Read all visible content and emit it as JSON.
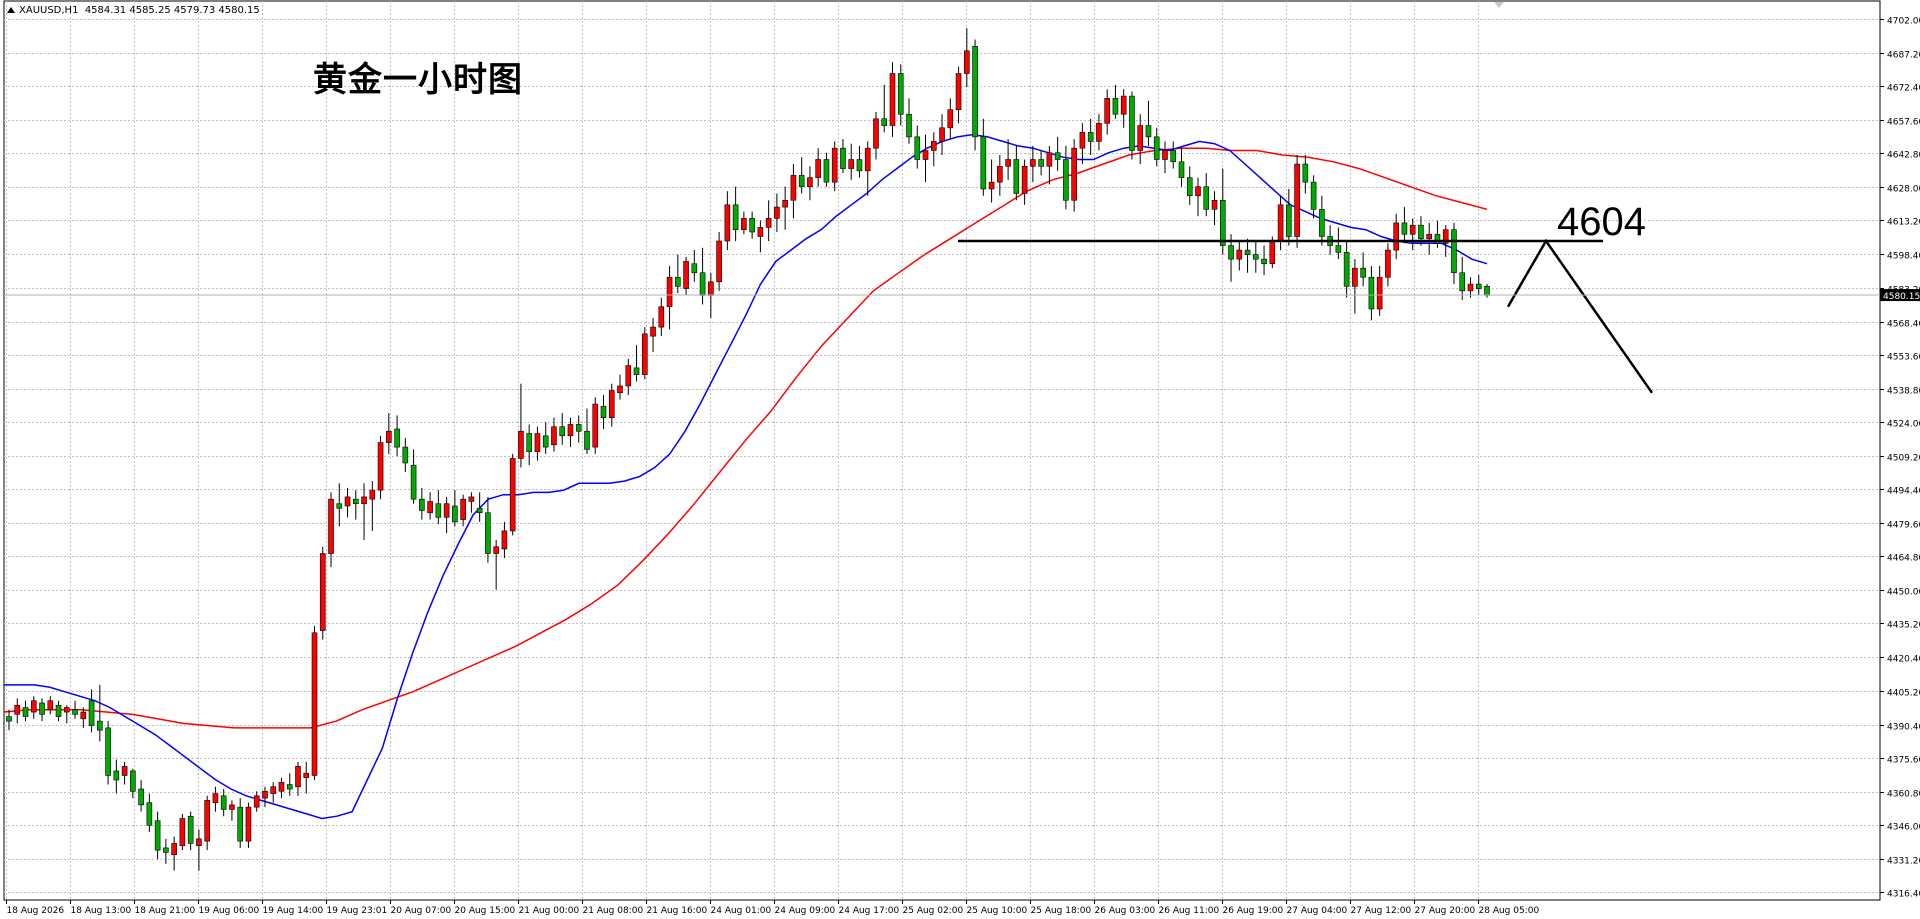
{
  "header": {
    "symbol": "XAUUSD,H1",
    "ohlc": "4584.31 4585.25 4579.73 4580.15"
  },
  "annotation": {
    "title": "黄金一小时图",
    "level_label": "4604"
  },
  "colors": {
    "bull_candle": "#ff0000",
    "bear_candle": "#00aa00",
    "ma_fast": "#0000ff",
    "ma_slow": "#ff0000",
    "grid": "#c0c0c0",
    "background": "#ffffff"
  },
  "chart_data": {
    "type": "candlestick",
    "y_range": [
      4313,
      4710
    ],
    "grid": true,
    "y_ticks": [
      "4702.00",
      "4687.20",
      "4672.40",
      "4657.60",
      "4642.80",
      "4628.00",
      "4613.20",
      "4598.40",
      "4583.20",
      "4568.40",
      "4553.60",
      "4538.80",
      "4524.00",
      "4509.20",
      "4494.40",
      "4479.60",
      "4464.80",
      "4450.00",
      "4435.20",
      "4420.40",
      "4405.20",
      "4390.40",
      "4375.60",
      "4360.80",
      "4346.00",
      "4331.20",
      "4316.40"
    ],
    "y_tick_values": [
      4702.0,
      4687.2,
      4672.4,
      4657.6,
      4642.8,
      4628.0,
      4613.2,
      4598.4,
      4583.2,
      4568.4,
      4553.6,
      4538.8,
      4524.0,
      4509.2,
      4494.4,
      4479.6,
      4464.8,
      4450.0,
      4435.2,
      4420.4,
      4405.2,
      4390.4,
      4375.6,
      4360.8,
      4346.0,
      4331.2,
      4316.4
    ],
    "x_ticks": [
      "18 Aug 2026",
      "18 Aug 13:00",
      "18 Aug 21:00",
      "19 Aug 06:00",
      "19 Aug 14:00",
      "19 Aug 23:01",
      "20 Aug 07:00",
      "20 Aug 15:00",
      "21 Aug 00:00",
      "21 Aug 08:00",
      "21 Aug 16:00",
      "24 Aug 01:00",
      "24 Aug 09:00",
      "24 Aug 17:00",
      "25 Aug 02:00",
      "25 Aug 10:00",
      "25 Aug 18:00",
      "26 Aug 03:00",
      "26 Aug 11:00",
      "26 Aug 19:00",
      "27 Aug 04:00",
      "27 Aug 12:00",
      "27 Aug 20:00",
      "28 Aug 05:00"
    ],
    "current_price": "4580.15",
    "current_price_value": 4580.15,
    "resistance_level": 4604,
    "projection": {
      "path_prices": [
        4575,
        4604,
        4537
      ]
    },
    "candles_ohlc": [
      [
        4394,
        4397,
        4388,
        4392
      ],
      [
        4395,
        4402,
        4391,
        4399
      ],
      [
        4398,
        4401,
        4392,
        4394
      ],
      [
        4396,
        4403,
        4393,
        4401
      ],
      [
        4400,
        4402,
        4392,
        4395
      ],
      [
        4397,
        4403,
        4395,
        4401
      ],
      [
        4399,
        4401,
        4392,
        4394
      ],
      [
        4396,
        4399,
        4391,
        4398
      ],
      [
        4397,
        4401,
        4393,
        4395
      ],
      [
        4393,
        4398,
        4389,
        4396
      ],
      [
        4401,
        4406,
        4387,
        4390
      ],
      [
        4392,
        4408,
        4383,
        4388
      ],
      [
        4389,
        4392,
        4364,
        4368
      ],
      [
        4370,
        4375,
        4360,
        4366
      ],
      [
        4368,
        4374,
        4364,
        4372
      ],
      [
        4370,
        4371,
        4358,
        4361
      ],
      [
        4362,
        4366,
        4352,
        4355
      ],
      [
        4356,
        4360,
        4343,
        4346
      ],
      [
        4348,
        4352,
        4331,
        4335
      ],
      [
        4336,
        4340,
        4329,
        4334
      ],
      [
        4333,
        4341,
        4326,
        4338
      ],
      [
        4337,
        4351,
        4335,
        4349
      ],
      [
        4350,
        4352,
        4335,
        4338
      ],
      [
        4337,
        4344,
        4326,
        4340
      ],
      [
        4339,
        4359,
        4335,
        4357
      ],
      [
        4356,
        4363,
        4352,
        4360
      ],
      [
        4359,
        4362,
        4350,
        4353
      ],
      [
        4353,
        4357,
        4348,
        4355
      ],
      [
        4354,
        4358,
        4336,
        4339
      ],
      [
        4339,
        4356,
        4336,
        4354
      ],
      [
        4354,
        4361,
        4352,
        4359
      ],
      [
        4358,
        4363,
        4354,
        4361
      ],
      [
        4360,
        4365,
        4356,
        4363
      ],
      [
        4361,
        4367,
        4358,
        4365
      ],
      [
        4364,
        4369,
        4359,
        4362
      ],
      [
        4363,
        4374,
        4359,
        4372
      ],
      [
        4367,
        4374,
        4360,
        4369
      ],
      [
        4368,
        4434,
        4366,
        4431
      ],
      [
        4432,
        4469,
        4428,
        4466
      ],
      [
        4466,
        4493,
        4460,
        4490
      ],
      [
        4488,
        4497,
        4478,
        4486
      ],
      [
        4487,
        4495,
        4482,
        4491
      ],
      [
        4490,
        4494,
        4481,
        4488
      ],
      [
        4488,
        4497,
        4472,
        4491
      ],
      [
        4490,
        4498,
        4476,
        4494
      ],
      [
        4494,
        4518,
        4490,
        4515
      ],
      [
        4515,
        4528,
        4510,
        4520
      ],
      [
        4521,
        4527,
        4509,
        4513
      ],
      [
        4513,
        4517,
        4502,
        4506
      ],
      [
        4505,
        4512,
        4488,
        4490
      ],
      [
        4490,
        4495,
        4481,
        4485
      ],
      [
        4484,
        4493,
        4481,
        4489
      ],
      [
        4488,
        4494,
        4479,
        4482
      ],
      [
        4482,
        4491,
        4475,
        4488
      ],
      [
        4487,
        4494,
        4478,
        4480
      ],
      [
        4481,
        4492,
        4478,
        4490
      ],
      [
        4489,
        4493,
        4484,
        4491
      ],
      [
        4486,
        4493,
        4480,
        4484
      ],
      [
        4484,
        4491,
        4462,
        4466
      ],
      [
        4466,
        4472,
        4450,
        4469
      ],
      [
        4468,
        4480,
        4464,
        4476
      ],
      [
        4476,
        4510,
        4474,
        4508
      ],
      [
        4508,
        4541,
        4504,
        4520
      ],
      [
        4519,
        4523,
        4505,
        4511
      ],
      [
        4511,
        4522,
        4507,
        4519
      ],
      [
        4518,
        4524,
        4510,
        4513
      ],
      [
        4514,
        4526,
        4511,
        4522
      ],
      [
        4522,
        4528,
        4514,
        4518
      ],
      [
        4518,
        4526,
        4513,
        4523
      ],
      [
        4523,
        4527,
        4515,
        4520
      ],
      [
        4520,
        4530,
        4510,
        4512
      ],
      [
        4513,
        4535,
        4510,
        4532
      ],
      [
        4531,
        4536,
        4521,
        4526
      ],
      [
        4526,
        4541,
        4522,
        4538
      ],
      [
        4537,
        4545,
        4534,
        4540
      ],
      [
        4540,
        4552,
        4536,
        4549
      ],
      [
        4548,
        4558,
        4542,
        4545
      ],
      [
        4545,
        4566,
        4543,
        4563
      ],
      [
        4562,
        4570,
        4555,
        4566
      ],
      [
        4566,
        4579,
        4562,
        4575
      ],
      [
        4575,
        4593,
        4565,
        4588
      ],
      [
        4588,
        4598,
        4581,
        4584
      ],
      [
        4583,
        4597,
        4580,
        4595
      ],
      [
        4594,
        4600,
        4586,
        4590
      ],
      [
        4590,
        4601,
        4576,
        4580
      ],
      [
        4580,
        4590,
        4570,
        4586
      ],
      [
        4586,
        4608,
        4582,
        4604
      ],
      [
        4604,
        4626,
        4600,
        4620
      ],
      [
        4620,
        4628,
        4604,
        4609
      ],
      [
        4609,
        4617,
        4607,
        4614
      ],
      [
        4614,
        4617,
        4605,
        4608
      ],
      [
        4606,
        4613,
        4599,
        4610
      ],
      [
        4610,
        4622,
        4604,
        4614
      ],
      [
        4614,
        4625,
        4608,
        4619
      ],
      [
        4619,
        4628,
        4609,
        4622
      ],
      [
        4622,
        4638,
        4614,
        4633
      ],
      [
        4633,
        4641,
        4625,
        4628
      ],
      [
        4628,
        4637,
        4622,
        4632
      ],
      [
        4632,
        4645,
        4628,
        4640
      ],
      [
        4640,
        4643,
        4628,
        4630
      ],
      [
        4630,
        4648,
        4626,
        4645
      ],
      [
        4645,
        4649,
        4634,
        4636
      ],
      [
        4636,
        4647,
        4631,
        4640
      ],
      [
        4640,
        4646,
        4632,
        4635
      ],
      [
        4635,
        4648,
        4624,
        4645
      ],
      [
        4645,
        4661,
        4640,
        4658
      ],
      [
        4658,
        4673,
        4652,
        4655
      ],
      [
        4655,
        4683,
        4650,
        4678
      ],
      [
        4678,
        4682,
        4655,
        4660
      ],
      [
        4660,
        4667,
        4647,
        4650
      ],
      [
        4650,
        4655,
        4636,
        4640
      ],
      [
        4640,
        4651,
        4630,
        4644
      ],
      [
        4644,
        4652,
        4637,
        4648
      ],
      [
        4648,
        4660,
        4642,
        4654
      ],
      [
        4654,
        4667,
        4649,
        4662
      ],
      [
        4662,
        4681,
        4656,
        4678
      ],
      [
        4678,
        4698,
        4672,
        4688
      ],
      [
        4690,
        4693,
        4644,
        4650
      ],
      [
        4650,
        4658,
        4624,
        4627
      ],
      [
        4627,
        4640,
        4621,
        4630
      ],
      [
        4630,
        4642,
        4624,
        4637
      ],
      [
        4637,
        4649,
        4631,
        4640
      ],
      [
        4640,
        4646,
        4622,
        4625
      ],
      [
        4625,
        4640,
        4620,
        4637
      ],
      [
        4637,
        4646,
        4630,
        4640
      ],
      [
        4640,
        4644,
        4633,
        4637
      ],
      [
        4637,
        4646,
        4629,
        4643
      ],
      [
        4643,
        4650,
        4635,
        4640
      ],
      [
        4640,
        4646,
        4618,
        4622
      ],
      [
        4622,
        4649,
        4617,
        4645
      ],
      [
        4645,
        4656,
        4638,
        4652
      ],
      [
        4652,
        4658,
        4642,
        4648
      ],
      [
        4648,
        4660,
        4644,
        4656
      ],
      [
        4656,
        4671,
        4651,
        4667
      ],
      [
        4667,
        4673,
        4658,
        4660
      ],
      [
        4660,
        4671,
        4654,
        4668
      ],
      [
        4668,
        4670,
        4640,
        4644
      ],
      [
        4644,
        4660,
        4638,
        4655
      ],
      [
        4655,
        4666,
        4646,
        4650
      ],
      [
        4650,
        4654,
        4637,
        4640
      ],
      [
        4640,
        4648,
        4634,
        4644
      ],
      [
        4644,
        4648,
        4636,
        4639
      ],
      [
        4639,
        4645,
        4628,
        4632
      ],
      [
        4632,
        4637,
        4620,
        4624
      ],
      [
        4624,
        4632,
        4615,
        4628
      ],
      [
        4628,
        4634,
        4615,
        4618
      ],
      [
        4618,
        4626,
        4611,
        4622
      ],
      [
        4622,
        4636,
        4598,
        4602
      ],
      [
        4602,
        4607,
        4586,
        4596
      ],
      [
        4596,
        4604,
        4591,
        4600
      ],
      [
        4600,
        4605,
        4590,
        4598
      ],
      [
        4598,
        4604,
        4590,
        4596
      ],
      [
        4596,
        4602,
        4589,
        4594
      ],
      [
        4594,
        4606,
        4592,
        4604
      ],
      [
        4604,
        4624,
        4600,
        4620
      ],
      [
        4620,
        4627,
        4602,
        4606
      ],
      [
        4606,
        4642,
        4601,
        4638
      ],
      [
        4638,
        4642,
        4625,
        4630
      ],
      [
        4630,
        4633,
        4614,
        4618
      ],
      [
        4618,
        4624,
        4602,
        4606
      ],
      [
        4606,
        4611,
        4598,
        4602
      ],
      [
        4602,
        4610,
        4596,
        4599
      ],
      [
        4599,
        4604,
        4579,
        4584
      ],
      [
        4584,
        4596,
        4572,
        4592
      ],
      [
        4592,
        4599,
        4584,
        4588
      ],
      [
        4588,
        4593,
        4569,
        4574
      ],
      [
        4574,
        4593,
        4571,
        4588
      ],
      [
        4588,
        4603,
        4584,
        4600
      ],
      [
        4600,
        4616,
        4596,
        4612
      ],
      [
        4612,
        4619,
        4603,
        4607
      ],
      [
        4607,
        4614,
        4600,
        4611
      ],
      [
        4611,
        4615,
        4602,
        4605
      ],
      [
        4605,
        4612,
        4598,
        4607
      ],
      [
        4607,
        4613,
        4601,
        4603
      ],
      [
        4603,
        4611,
        4597,
        4609
      ],
      [
        4609,
        4612,
        4585,
        4590
      ],
      [
        4590,
        4597,
        4578,
        4582
      ],
      [
        4582,
        4588,
        4579,
        4585
      ],
      [
        4585,
        4589,
        4580,
        4583
      ],
      [
        4584,
        4585,
        4579,
        4580
      ]
    ],
    "ma_fast_values": [
      4408,
      4408,
      4408,
      4407,
      4405,
      4403,
      4401,
      4398,
      4394,
      4390,
      4386,
      4381,
      4376,
      4371,
      4366,
      4362,
      4359,
      4357,
      4355,
      4353,
      4351,
      4349,
      4350,
      4352,
      4366,
      4380,
      4402,
      4422,
      4440,
      4456,
      4470,
      4483,
      4490,
      4492,
      4492,
      4493,
      4493,
      4494,
      4497,
      4497,
      4497,
      4498,
      4500,
      4504,
      4510,
      4520,
      4532,
      4545,
      4558,
      4571,
      4585,
      4595,
      4600,
      4605,
      4609,
      4615,
      4620,
      4625,
      4631,
      4636,
      4641,
      4645,
      4648,
      4650,
      4651,
      4650,
      4648,
      4646,
      4645,
      4643,
      4641,
      4640,
      4640,
      4643,
      4645,
      4646,
      4645,
      4644,
      4646,
      4648,
      4647,
      4644,
      4638,
      4632,
      4626,
      4620,
      4617,
      4614,
      4612,
      4610,
      4609,
      4606,
      4604,
      4603,
      4603,
      4603,
      4600,
      4596,
      4594
    ],
    "ma_slow_values": [
      4396,
      4397,
      4397,
      4397,
      4396,
      4395,
      4393,
      4391,
      4390,
      4389,
      4389,
      4389,
      4389,
      4392,
      4397,
      4401,
      4405,
      4410,
      4415,
      4420,
      4425,
      4431,
      4437,
      4444,
      4452,
      4463,
      4475,
      4488,
      4502,
      4516,
      4529,
      4544,
      4558,
      4570,
      4582,
      4590,
      4598,
      4605,
      4612,
      4619,
      4626,
      4631,
      4634,
      4638,
      4642,
      4644,
      4645,
      4645,
      4644,
      4644,
      4642,
      4641,
      4639,
      4636,
      4632,
      4628,
      4624,
      4621,
      4618
    ]
  }
}
